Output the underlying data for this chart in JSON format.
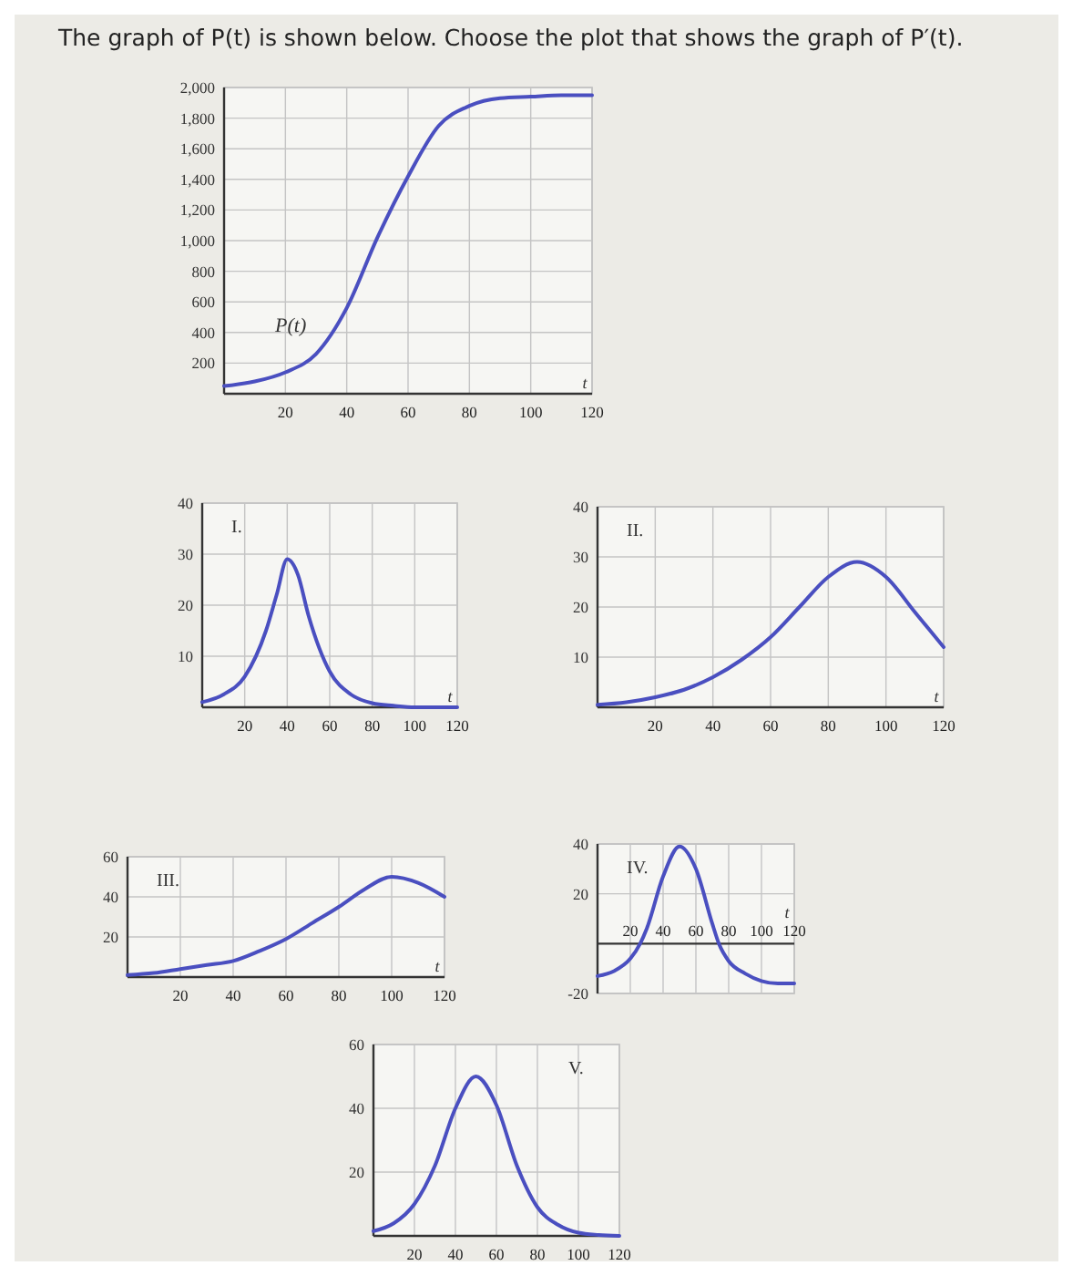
{
  "chart_data": [
    {
      "type": "line",
      "title": "The graph of P(t) is shown below. Choose the plot that shows the graph of P′(t).",
      "xlabel": "t",
      "x": [
        0,
        10,
        20,
        30,
        40,
        50,
        60,
        70,
        80,
        90,
        100,
        110,
        120
      ],
      "series": [
        {
          "color": "#4a4fc0",
          "values": [
            50,
            80,
            140,
            260,
            560,
            1020,
            1420,
            1750,
            1880,
            1930,
            1940,
            1950,
            1950
          ]
        }
      ],
      "xlim": [
        0,
        120
      ],
      "ylim": [
        0,
        2000
      ],
      "xticks": [
        20,
        40,
        60,
        80,
        100,
        120
      ],
      "yticks": [
        {
          "value": 200,
          "label": "200"
        },
        {
          "value": 400,
          "label": "400"
        },
        {
          "value": 600,
          "label": "600"
        },
        {
          "value": 800,
          "label": "800"
        },
        {
          "value": 1000,
          "label": "1,000"
        },
        {
          "value": 1200,
          "label": "1,200"
        },
        {
          "value": 1400,
          "label": "1,400"
        },
        {
          "value": 1600,
          "label": "1,600"
        },
        {
          "value": 1800,
          "label": "1,800"
        },
        {
          "value": 2000,
          "label": "2,000"
        }
      ],
      "annotations": [
        "P(t)"
      ],
      "grid": true
    },
    {
      "type": "line",
      "xlabel": "t",
      "x": [
        0,
        10,
        20,
        30,
        35,
        40,
        45,
        50,
        60,
        70,
        80,
        90,
        100,
        120
      ],
      "series": [
        {
          "color": "#4a4fc0",
          "values": [
            1,
            2.5,
            6,
            15,
            22,
            29,
            26,
            18,
            7,
            2.5,
            0.8,
            0.3,
            0,
            0
          ]
        }
      ],
      "xlim": [
        0,
        120
      ],
      "ylim": [
        0,
        40
      ],
      "xticks": [
        20,
        40,
        60,
        80,
        100,
        120
      ],
      "yticks": [
        10,
        20,
        30,
        40
      ],
      "annotations": [
        "I."
      ],
      "grid": true
    },
    {
      "type": "line",
      "xlabel": "t",
      "x": [
        0,
        10,
        20,
        30,
        40,
        50,
        60,
        70,
        80,
        90,
        100,
        110,
        120
      ],
      "series": [
        {
          "color": "#4a4fc0",
          "values": [
            0.5,
            1,
            2,
            3.5,
            6,
            9.5,
            14,
            20,
            26,
            29,
            26,
            19,
            12
          ]
        }
      ],
      "xlim": [
        0,
        120
      ],
      "ylim": [
        0,
        40
      ],
      "xticks": [
        20,
        40,
        60,
        80,
        100,
        120
      ],
      "yticks": [
        10,
        20,
        30,
        40
      ],
      "annotations": [
        "II."
      ],
      "grid": true
    },
    {
      "type": "line",
      "xlabel": "t",
      "x": [
        0,
        10,
        20,
        30,
        40,
        50,
        60,
        70,
        80,
        90,
        100,
        110,
        120
      ],
      "series": [
        {
          "color": "#4a4fc0",
          "values": [
            1,
            2,
            4,
            6,
            8,
            13,
            19,
            27,
            35,
            44,
            50,
            47,
            40
          ]
        }
      ],
      "xlim": [
        0,
        120
      ],
      "ylim": [
        0,
        60
      ],
      "xticks": [
        20,
        40,
        60,
        80,
        100,
        120
      ],
      "yticks": [
        20,
        40,
        60
      ],
      "annotations": [
        "III."
      ],
      "grid": true
    },
    {
      "type": "line",
      "xlabel": "t",
      "x": [
        0,
        10,
        20,
        26,
        30,
        40,
        50,
        60,
        70,
        74,
        80,
        90,
        100,
        110,
        120
      ],
      "series": [
        {
          "color": "#4a4fc0",
          "values": [
            -13,
            -11,
            -6,
            0,
            6,
            27,
            39,
            30,
            8,
            0,
            -7,
            -12,
            -15,
            -16,
            -16
          ]
        }
      ],
      "xlim": [
        0,
        120
      ],
      "ylim": [
        -20,
        40
      ],
      "xticks": [
        20,
        40,
        60,
        80,
        100,
        120
      ],
      "yticks": [
        -20,
        20,
        40
      ],
      "annotations": [
        "IV."
      ],
      "grid": true
    },
    {
      "type": "line",
      "x": [
        0,
        10,
        20,
        30,
        40,
        50,
        60,
        70,
        80,
        90,
        100,
        110,
        120
      ],
      "series": [
        {
          "color": "#4a4fc0",
          "values": [
            1.5,
            4,
            10,
            22,
            40,
            50,
            41,
            22,
            9,
            3.5,
            1,
            0.3,
            0
          ]
        }
      ],
      "xlim": [
        0,
        120
      ],
      "ylim": [
        0,
        60
      ],
      "xticks": [
        20,
        40,
        60,
        80,
        100,
        120
      ],
      "yticks": [
        20,
        40,
        60
      ],
      "annotations": [
        "V."
      ],
      "grid": true
    }
  ]
}
